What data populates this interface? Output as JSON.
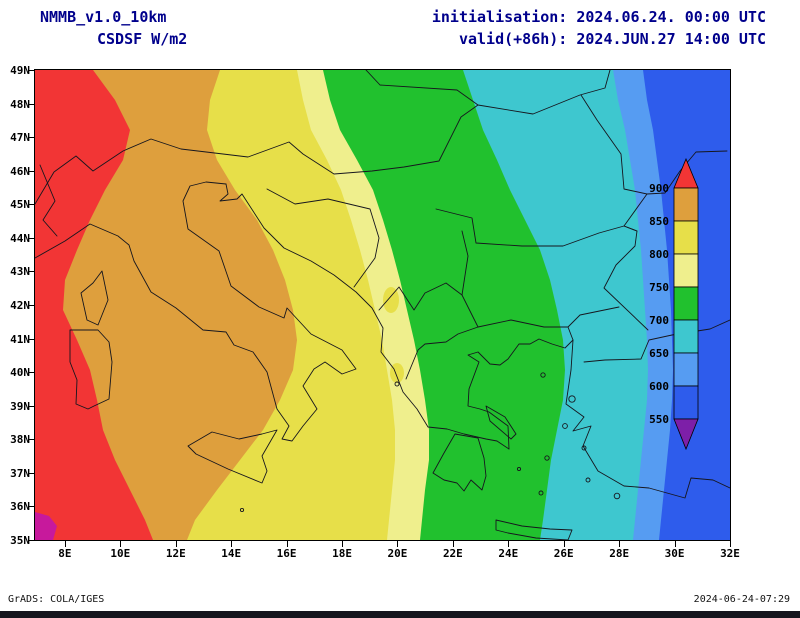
{
  "header": {
    "model": "NMMB_v1.0_10km",
    "variable": "CSDSF  W/m2",
    "init": "initialisation: 2024.06.24. 00:00 UTC",
    "valid": "valid(+86h): 2024.JUN.27 14:00 UTC"
  },
  "map": {
    "lat_labels": [
      "49N",
      "48N",
      "47N",
      "46N",
      "45N",
      "44N",
      "43N",
      "42N",
      "41N",
      "40N",
      "39N",
      "38N",
      "37N",
      "36N",
      "35N"
    ],
    "lon_labels": [
      "8E",
      "10E",
      "12E",
      "14E",
      "16E",
      "18E",
      "20E",
      "22E",
      "24E",
      "26E",
      "28E",
      "30E",
      "32E"
    ],
    "bands_west_to_east": [
      {
        "color_name": "red",
        "value_range": "> 900"
      },
      {
        "color_name": "tan",
        "value_range": "850 - 900"
      },
      {
        "color_name": "yellow",
        "value_range": "800 - 850"
      },
      {
        "color_name": "pale-yellow",
        "value_range": "750 - 800"
      },
      {
        "color_name": "green",
        "value_range": "700 - 750"
      },
      {
        "color_name": "cyan",
        "value_range": "650 - 700"
      },
      {
        "color_name": "light-blue",
        "value_range": "600 - 650"
      },
      {
        "color_name": "blue",
        "value_range": "550 - 600"
      }
    ]
  },
  "legend": {
    "values": [
      "900",
      "850",
      "800",
      "750",
      "700",
      "650",
      "600",
      "550"
    ],
    "arrow_top_color": "#f23535",
    "arrow_bottom_color": "#7d1fa8",
    "box_colors": [
      "#de9f3d",
      "#e7df49",
      "#efef8d",
      "#21c12e",
      "#3ec7cf",
      "#569cf2",
      "#2e5cec"
    ]
  },
  "colors": {
    "band_red": "#f23535",
    "band_tan": "#de9f3d",
    "band_yellow": "#e7df49",
    "band_pale_yellow": "#efef8d",
    "band_green": "#21c12e",
    "band_cyan": "#3ec7cf",
    "band_light_blue": "#569cf2",
    "band_blue": "#2e5cec",
    "band_magenta": "#c7199c",
    "coastline": "#16161e"
  },
  "footer": {
    "credit": "GrADS: COLA/IGES",
    "timestamp": "2024-06-24-07:29"
  }
}
